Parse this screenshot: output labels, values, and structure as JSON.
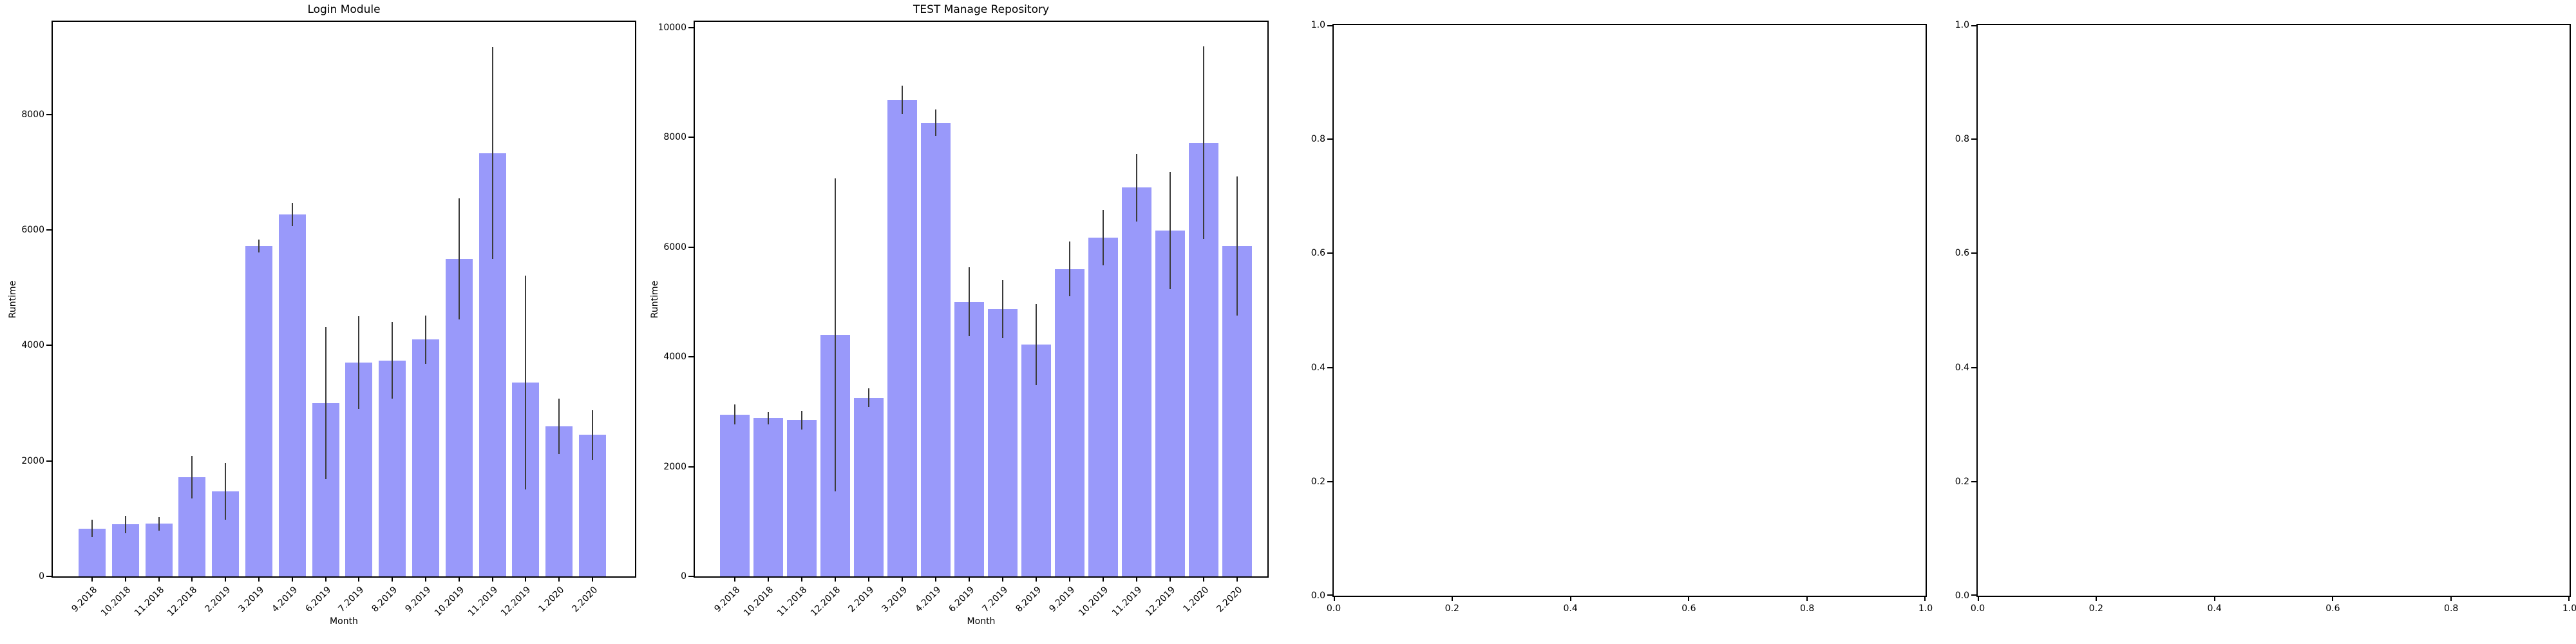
{
  "figure": {
    "background": "#ffffff",
    "colors": {
      "bar_fill": "#9999fa",
      "error_bar": "#3c3c3c",
      "spine": "#000000",
      "text": "#000000"
    }
  },
  "chart_data": [
    {
      "type": "bar",
      "title": "Login Module",
      "xlabel": "Month",
      "ylabel": "Runtime",
      "categories": [
        "9.2018",
        "10.2018",
        "11.2018",
        "12.2018",
        "2.2019",
        "3.2019",
        "4.2019",
        "6.2019",
        "7.2019",
        "8.2019",
        "9.2019",
        "10.2019",
        "11.2019",
        "12.2019",
        "1.2020",
        "2.2020"
      ],
      "values": [
        830,
        900,
        910,
        1720,
        1470,
        5720,
        6270,
        3000,
        3700,
        3740,
        4100,
        5500,
        7330,
        3360,
        2600,
        2450
      ],
      "errors": [
        150,
        150,
        120,
        370,
        490,
        110,
        200,
        1320,
        800,
        660,
        420,
        1050,
        1830,
        1850,
        480,
        430
      ],
      "yticks": [
        0,
        2000,
        4000,
        6000,
        8000
      ],
      "ylim": [
        0,
        9600
      ],
      "grid": false,
      "legend": null
    },
    {
      "type": "bar",
      "title": "TEST Manage Repository",
      "xlabel": "Month",
      "ylabel": "Runtime",
      "categories": [
        "9.2018",
        "10.2018",
        "11.2018",
        "12.2018",
        "2.2019",
        "3.2019",
        "4.2019",
        "6.2019",
        "7.2019",
        "8.2019",
        "9.2019",
        "10.2019",
        "11.2019",
        "12.2019",
        "1.2020",
        "2.2020"
      ],
      "values": [
        2950,
        2880,
        2850,
        4400,
        3250,
        8680,
        8260,
        5000,
        4870,
        4220,
        5600,
        6170,
        7080,
        6300,
        7900,
        6020
      ],
      "errors": [
        180,
        110,
        170,
        2850,
        170,
        260,
        240,
        630,
        530,
        740,
        500,
        500,
        620,
        1070,
        1750,
        1270
      ],
      "yticks": [
        0,
        2000,
        4000,
        6000,
        8000,
        10000
      ],
      "ylim": [
        0,
        10100
      ],
      "grid": false,
      "legend": null
    },
    {
      "type": "empty",
      "title": "",
      "xlabel": "",
      "ylabel": "",
      "xticks": [
        "0.0",
        "0.2",
        "0.4",
        "0.6",
        "0.8",
        "1.0"
      ],
      "yticks": [
        "0.0",
        "0.2",
        "0.4",
        "0.6",
        "0.8",
        "1.0"
      ],
      "xlim": [
        0.0,
        1.0
      ],
      "ylim": [
        0.0,
        1.0
      ],
      "grid": false,
      "legend": null
    },
    {
      "type": "empty",
      "title": "",
      "xlabel": "",
      "ylabel": "",
      "xticks": [
        "0.0",
        "0.2",
        "0.4",
        "0.6",
        "0.8",
        "1.0"
      ],
      "yticks": [
        "0.0",
        "0.2",
        "0.4",
        "0.6",
        "0.8",
        "1.0"
      ],
      "xlim": [
        0.0,
        1.0
      ],
      "ylim": [
        0.0,
        1.0
      ],
      "grid": false,
      "legend": null
    }
  ]
}
